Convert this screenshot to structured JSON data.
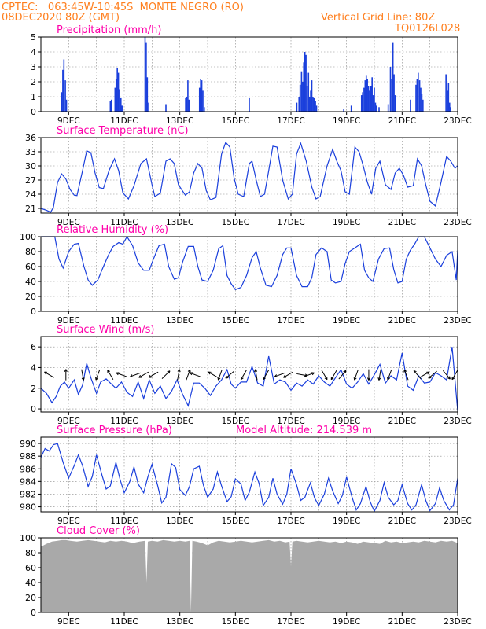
{
  "header": {
    "line1_left": "CPTEC:   063:45W-10:45S  MONTE NEGRO (RO)",
    "line2_left": "08DEC2020 80Z (GMT)",
    "line1_right": "Vertical Grid Line: 80Z",
    "line2_right": "TQ0126L028"
  },
  "colors": {
    "header": "#ff7f1e",
    "title": "#ff00aa",
    "series": "#1a3fdc",
    "cloud": "#a9a9a9",
    "axis": "#000000"
  },
  "date_labels": [
    "9DEC",
    "11DEC",
    "13DEC",
    "15DEC",
    "17DEC",
    "19DEC",
    "21DEC",
    "23DEC"
  ],
  "chart_data": [
    {
      "id": "precip",
      "type": "bar",
      "title": "Precipitation (mm/h)",
      "xlabel": "",
      "ylabel": "",
      "xlim": [
        8.0,
        23.0
      ],
      "ylim": [
        0,
        5
      ],
      "yticks": [
        0,
        1,
        2,
        3,
        4,
        5
      ],
      "grid": true,
      "values_x": [
        8.75,
        8.79,
        8.83,
        8.88,
        8.92,
        10.5,
        10.54,
        10.67,
        10.71,
        10.75,
        10.79,
        10.83,
        10.88,
        10.92,
        11.75,
        11.79,
        11.83,
        11.88,
        12.5,
        13.21,
        13.25,
        13.29,
        13.33,
        13.71,
        13.75,
        13.79,
        13.83,
        13.88,
        15.5,
        17.21,
        17.29,
        17.33,
        17.38,
        17.42,
        17.46,
        17.5,
        17.54,
        17.58,
        17.63,
        17.67,
        17.71,
        17.75,
        17.79,
        17.83,
        17.88,
        17.92,
        18.9,
        19.17,
        19.54,
        19.58,
        19.63,
        19.67,
        19.71,
        19.75,
        19.79,
        19.83,
        19.88,
        19.92,
        19.96,
        20.0,
        20.04,
        20.08,
        20.17,
        20.5,
        20.58,
        20.63,
        20.67,
        20.71,
        20.75,
        21.3,
        21.5,
        21.54,
        21.58,
        21.63,
        21.67,
        21.71,
        21.75,
        22.58,
        22.63,
        22.67,
        22.71,
        22.75
      ],
      "values_y": [
        1.3,
        2.8,
        3.5,
        2.1,
        0.8,
        0.7,
        0.8,
        1.6,
        2.2,
        2.9,
        2.6,
        1.5,
        0.9,
        0.4,
        5.0,
        4.6,
        2.3,
        0.6,
        0.5,
        0.9,
        1.0,
        2.1,
        0.8,
        1.6,
        2.2,
        2.1,
        1.4,
        0.3,
        0.9,
        0.6,
        1.0,
        1.8,
        2.7,
        2.0,
        3.3,
        4.0,
        3.8,
        1.7,
        2.6,
        1.0,
        1.4,
        2.1,
        1.0,
        0.9,
        0.7,
        0.4,
        0.2,
        0.4,
        1.1,
        1.3,
        1.6,
        2.1,
        2.4,
        2.2,
        1.7,
        1.4,
        1.7,
        2.3,
        1.1,
        1.6,
        0.6,
        0.4,
        0.3,
        0.5,
        3.0,
        2.2,
        4.6,
        2.5,
        1.1,
        0.8,
        1.8,
        2.2,
        2.6,
        2.1,
        1.6,
        1.2,
        0.8,
        2.5,
        1.4,
        1.9,
        0.6,
        0.3
      ]
    },
    {
      "id": "temp",
      "type": "line",
      "title": "Surface Temperature (nC)",
      "xlabel": "",
      "ylabel": "",
      "xlim": [
        8.0,
        23.0
      ],
      "ylim": [
        20,
        36
      ],
      "yticks": [
        21,
        24,
        27,
        30,
        33,
        36
      ],
      "grid": true,
      "x": [
        8.0,
        8.2,
        8.35,
        8.45,
        8.6,
        8.75,
        8.9,
        9.05,
        9.2,
        9.3,
        9.5,
        9.65,
        9.8,
        9.95,
        10.1,
        10.25,
        10.45,
        10.65,
        10.8,
        10.95,
        11.15,
        11.35,
        11.6,
        11.8,
        12.0,
        12.1,
        12.3,
        12.5,
        12.65,
        12.8,
        12.95,
        13.2,
        13.35,
        13.5,
        13.65,
        13.8,
        13.95,
        14.1,
        14.3,
        14.5,
        14.65,
        14.8,
        14.95,
        15.1,
        15.3,
        15.5,
        15.6,
        15.75,
        15.9,
        16.05,
        16.2,
        16.35,
        16.5,
        16.7,
        16.9,
        17.05,
        17.2,
        17.35,
        17.55,
        17.75,
        17.9,
        18.05,
        18.3,
        18.5,
        18.65,
        18.8,
        18.95,
        19.1,
        19.3,
        19.45,
        19.6,
        19.75,
        19.9,
        20.05,
        20.2,
        20.4,
        20.6,
        20.75,
        20.9,
        21.05,
        21.2,
        21.4,
        21.55,
        21.7,
        21.85,
        22.0,
        22.2,
        22.4,
        22.6,
        22.75,
        22.9,
        23.0
      ],
      "y": [
        21.0,
        20.6,
        20.2,
        21.2,
        26.5,
        28.3,
        27.2,
        25.0,
        23.8,
        23.7,
        29.0,
        33.2,
        32.8,
        28.5,
        25.4,
        25.2,
        29.0,
        31.5,
        29.0,
        24.3,
        23.0,
        25.8,
        30.5,
        31.5,
        26.0,
        23.5,
        24.2,
        31.0,
        31.5,
        30.5,
        26.0,
        23.8,
        24.5,
        28.5,
        30.5,
        29.5,
        24.8,
        22.8,
        23.3,
        32.5,
        35.0,
        34.0,
        27.5,
        24.0,
        23.5,
        30.5,
        31.0,
        27.0,
        23.5,
        24.0,
        29.0,
        34.2,
        34.0,
        27.0,
        23.0,
        24.0,
        32.5,
        34.8,
        31.0,
        25.5,
        23.0,
        23.5,
        30.0,
        33.5,
        31.0,
        29.0,
        24.5,
        24.0,
        34.0,
        33.0,
        30.0,
        26.5,
        24.0,
        29.5,
        31.0,
        26.0,
        25.0,
        28.5,
        29.5,
        28.0,
        25.5,
        25.8,
        31.5,
        30.0,
        26.0,
        22.5,
        21.5,
        26.5,
        32.0,
        31.0,
        29.5,
        30.0
      ]
    },
    {
      "id": "rh",
      "type": "line",
      "title": "Relative Humidity (%)",
      "xlabel": "",
      "ylabel": "",
      "xlim": [
        8.0,
        23.0
      ],
      "ylim": [
        0,
        100
      ],
      "yticks": [
        0,
        20,
        40,
        60,
        80,
        100
      ],
      "grid": true,
      "x": [
        8.0,
        8.3,
        8.5,
        8.65,
        8.8,
        9.0,
        9.2,
        9.35,
        9.55,
        9.7,
        9.85,
        10.05,
        10.25,
        10.45,
        10.6,
        10.8,
        10.95,
        11.1,
        11.3,
        11.5,
        11.7,
        11.9,
        12.05,
        12.25,
        12.45,
        12.6,
        12.8,
        12.95,
        13.1,
        13.3,
        13.5,
        13.65,
        13.8,
        14.0,
        14.2,
        14.4,
        14.55,
        14.7,
        14.85,
        15.0,
        15.2,
        15.4,
        15.6,
        15.75,
        15.9,
        16.1,
        16.3,
        16.5,
        16.7,
        16.85,
        17.0,
        17.2,
        17.4,
        17.6,
        17.75,
        17.9,
        18.1,
        18.3,
        18.45,
        18.6,
        18.8,
        18.95,
        19.1,
        19.3,
        19.5,
        19.65,
        19.8,
        19.95,
        20.15,
        20.35,
        20.55,
        20.7,
        20.85,
        21.0,
        21.15,
        21.3,
        21.45,
        21.6,
        21.8,
        22.0,
        22.2,
        22.4,
        22.6,
        22.8,
        22.95,
        23.0
      ],
      "y": [
        100,
        100,
        100,
        70,
        58,
        80,
        90,
        91,
        60,
        42,
        35,
        42,
        60,
        77,
        87,
        92,
        90,
        100,
        88,
        65,
        55,
        55,
        70,
        88,
        90,
        60,
        43,
        45,
        66,
        87,
        87,
        60,
        42,
        40,
        55,
        84,
        88,
        48,
        37,
        29,
        32,
        48,
        72,
        80,
        58,
        35,
        33,
        48,
        76,
        85,
        85,
        48,
        33,
        33,
        45,
        76,
        85,
        80,
        42,
        38,
        40,
        64,
        80,
        85,
        90,
        55,
        45,
        40,
        70,
        84,
        85,
        56,
        38,
        40,
        70,
        82,
        90,
        100,
        100,
        85,
        70,
        60,
        75,
        80,
        42,
        82
      ]
    },
    {
      "id": "wind",
      "type": "line",
      "title": "Surface Wind (m/s)",
      "xlabel": "",
      "ylabel": "",
      "xlim": [
        8.0,
        23.0
      ],
      "ylim": [
        -0.3,
        7.0
      ],
      "yticks": [
        0,
        2,
        4,
        6
      ],
      "grid": true,
      "x": [
        8.0,
        8.2,
        8.4,
        8.55,
        8.7,
        8.85,
        9.0,
        9.2,
        9.35,
        9.5,
        9.65,
        9.8,
        10.0,
        10.15,
        10.35,
        10.5,
        10.7,
        10.9,
        11.1,
        11.3,
        11.5,
        11.7,
        11.9,
        12.1,
        12.3,
        12.5,
        12.7,
        12.9,
        13.1,
        13.3,
        13.5,
        13.7,
        13.9,
        14.1,
        14.3,
        14.5,
        14.7,
        14.85,
        15.0,
        15.2,
        15.4,
        15.6,
        15.8,
        16.0,
        16.2,
        16.4,
        16.6,
        16.8,
        17.0,
        17.2,
        17.4,
        17.6,
        17.8,
        18.0,
        18.2,
        18.4,
        18.6,
        18.8,
        19.0,
        19.2,
        19.4,
        19.6,
        19.8,
        20.0,
        20.2,
        20.4,
        20.6,
        20.8,
        21.0,
        21.2,
        21.4,
        21.6,
        21.8,
        22.0,
        22.2,
        22.4,
        22.6,
        22.8,
        23.0
      ],
      "y": [
        2.0,
        1.5,
        0.6,
        1.2,
        2.2,
        2.6,
        2.0,
        2.8,
        1.4,
        2.3,
        4.4,
        3.0,
        1.5,
        2.6,
        2.9,
        2.5,
        2.0,
        2.6,
        1.6,
        1.2,
        2.6,
        1.0,
        2.8,
        1.5,
        2.2,
        1.0,
        1.7,
        2.8,
        1.4,
        0.3,
        2.5,
        2.5,
        2.0,
        1.3,
        2.2,
        2.8,
        3.8,
        2.4,
        2.0,
        2.6,
        2.6,
        4.1,
        2.5,
        2.2,
        5.1,
        2.4,
        2.8,
        2.6,
        1.8,
        2.5,
        2.2,
        2.8,
        2.4,
        3.2,
        2.6,
        2.2,
        3.0,
        3.8,
        2.4,
        2.0,
        2.6,
        3.4,
        2.4,
        3.3,
        4.3,
        2.5,
        3.2,
        2.8,
        5.4,
        2.2,
        1.8,
        3.2,
        2.5,
        2.6,
        3.5,
        3.2,
        2.8,
        6.0,
        -0.2
      ],
      "arrows_x": [
        8.3,
        8.9,
        9.5,
        10.05,
        10.5,
        10.9,
        11.4,
        11.7,
        12.05,
        12.5,
        12.95,
        13.3,
        13.55,
        14.2,
        14.45,
        14.8,
        15.3,
        15.75,
        16.1,
        16.6,
        16.9,
        17.4,
        17.65,
        18.2,
        18.55,
        18.85,
        19.35,
        19.8,
        20.2,
        20.55,
        21.15,
        21.55,
        21.8,
        22.1,
        22.6,
        22.9
      ],
      "arrows_dir": [
        300,
        0,
        170,
        200,
        330,
        290,
        250,
        240,
        240,
        45,
        10,
        20,
        290,
        300,
        200,
        230,
        210,
        350,
        210,
        250,
        240,
        100,
        70,
        150,
        210,
        40,
        200,
        180,
        190,
        200,
        340,
        320,
        60,
        230,
        140,
        210
      ]
    },
    {
      "id": "pressure",
      "type": "line",
      "title": "Surface Pressure (hPa)",
      "subtitle": "Model Altitude: 214.539 m",
      "xlabel": "",
      "ylabel": "",
      "xlim": [
        8.0,
        23.0
      ],
      "ylim": [
        979.2,
        991.0
      ],
      "yticks": [
        980,
        982,
        984,
        986,
        988,
        990
      ],
      "grid": true,
      "x": [
        8.0,
        8.15,
        8.3,
        8.45,
        8.6,
        8.8,
        9.0,
        9.2,
        9.35,
        9.5,
        9.7,
        9.85,
        10.0,
        10.2,
        10.35,
        10.5,
        10.7,
        10.85,
        11.0,
        11.2,
        11.35,
        11.5,
        11.7,
        11.85,
        12.0,
        12.2,
        12.35,
        12.5,
        12.7,
        12.85,
        13.0,
        13.2,
        13.35,
        13.5,
        13.7,
        13.85,
        14.0,
        14.2,
        14.35,
        14.5,
        14.7,
        14.85,
        15.0,
        15.2,
        15.35,
        15.5,
        15.7,
        15.85,
        16.0,
        16.2,
        16.35,
        16.5,
        16.7,
        16.85,
        17.0,
        17.2,
        17.35,
        17.5,
        17.7,
        17.85,
        18.0,
        18.2,
        18.35,
        18.5,
        18.7,
        18.85,
        19.0,
        19.2,
        19.35,
        19.5,
        19.7,
        19.85,
        20.0,
        20.2,
        20.35,
        20.5,
        20.7,
        20.85,
        21.0,
        21.2,
        21.35,
        21.5,
        21.7,
        21.85,
        22.0,
        22.2,
        22.35,
        22.5,
        22.7,
        22.85,
        23.0
      ],
      "y": [
        987.8,
        989.2,
        988.8,
        989.8,
        990.0,
        987.0,
        984.5,
        986.5,
        988.2,
        986.5,
        983.2,
        984.8,
        988.2,
        985.0,
        982.8,
        983.3,
        987.0,
        984.3,
        982.2,
        984.0,
        986.3,
        983.6,
        982.2,
        984.7,
        986.7,
        983.4,
        980.6,
        981.5,
        986.8,
        986.2,
        982.7,
        981.8,
        983.2,
        986.0,
        986.4,
        983.4,
        981.5,
        982.8,
        985.5,
        983.3,
        980.8,
        981.6,
        984.4,
        983.6,
        981.0,
        982.3,
        985.5,
        983.7,
        980.2,
        981.5,
        984.5,
        982.0,
        980.4,
        982.0,
        986.0,
        983.5,
        981.0,
        981.5,
        983.8,
        981.4,
        980.2,
        982.0,
        984.5,
        982.5,
        980.5,
        981.8,
        984.7,
        981.5,
        979.5,
        980.5,
        983.2,
        980.8,
        979.3,
        981.0,
        983.8,
        981.5,
        980.3,
        981.0,
        983.5,
        980.5,
        979.5,
        980.3,
        983.5,
        981.0,
        979.4,
        980.5,
        983.0,
        981.0,
        979.5,
        980.3,
        984.5
      ]
    },
    {
      "id": "cloud",
      "type": "area",
      "title": "Cloud Cover (%)",
      "xlabel": "",
      "ylabel": "",
      "xlim": [
        8.0,
        23.0
      ],
      "ylim": [
        0,
        100
      ],
      "yticks": [
        0,
        20,
        40,
        60,
        80,
        100
      ],
      "grid": true,
      "x": [
        8.0,
        8.2,
        8.4,
        8.6,
        8.75,
        8.9,
        9.05,
        9.3,
        9.5,
        9.7,
        9.9,
        10.1,
        10.3,
        10.5,
        10.7,
        10.9,
        11.1,
        11.3,
        11.55,
        11.75,
        11.8,
        11.85,
        12.0,
        12.2,
        12.4,
        12.6,
        12.8,
        13.0,
        13.2,
        13.35,
        13.4,
        13.45,
        13.6,
        13.8,
        14.0,
        14.2,
        14.4,
        14.6,
        14.8,
        15.0,
        15.2,
        15.4,
        15.6,
        15.8,
        16.0,
        16.2,
        16.4,
        16.6,
        16.8,
        16.95,
        17.0,
        17.05,
        17.2,
        17.4,
        17.6,
        17.8,
        18.0,
        18.2,
        18.4,
        18.6,
        18.8,
        19.0,
        19.2,
        19.4,
        19.6,
        19.8,
        20.0,
        20.2,
        20.4,
        20.6,
        20.8,
        21.0,
        21.2,
        21.4,
        21.6,
        21.8,
        22.0,
        22.2,
        22.4,
        22.6,
        22.8,
        23.0
      ],
      "y": [
        88,
        92,
        95,
        96,
        97,
        97,
        96,
        95,
        96,
        97,
        96,
        95,
        94,
        96,
        95,
        96,
        95,
        93,
        95,
        96,
        40,
        95,
        96,
        95,
        97,
        96,
        95,
        96,
        95,
        96,
        0,
        96,
        95,
        93,
        90,
        94,
        96,
        95,
        94,
        95,
        96,
        95,
        94,
        95,
        96,
        97,
        95,
        96,
        94,
        95,
        62,
        95,
        96,
        95,
        94,
        95,
        96,
        95,
        94,
        95,
        93,
        95,
        94,
        92,
        95,
        94,
        93,
        92,
        96,
        94,
        95,
        93,
        94,
        95,
        94,
        96,
        95,
        94,
        96,
        95,
        96,
        93
      ]
    }
  ]
}
